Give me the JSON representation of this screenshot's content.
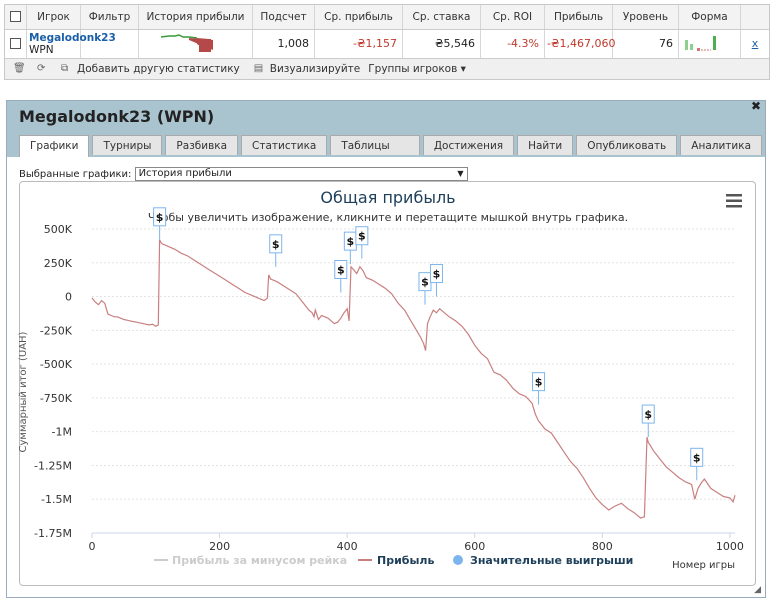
{
  "top_table": {
    "headers": [
      "Игрок",
      "Фильтр",
      "История прибыли",
      "Подсчет",
      "Ср. прибыль",
      "Ср. ставка",
      "Ср. ROI",
      "Прибыль",
      "Уровень",
      "Форма"
    ],
    "row": {
      "player_name": "Megalodonk23",
      "player_site": "WPN",
      "count": "1,008",
      "avg_profit": "-₴1,157",
      "avg_stake": "₴5,546",
      "avg_roi": "-4.3%",
      "profit": "-₴1,467,060",
      "level": "76",
      "remove": "x"
    },
    "toolbar": {
      "add_stat": "Добавить другую статистику",
      "visualize": "Визуализируйте",
      "player_groups": "Группы игроков"
    }
  },
  "panel": {
    "title": "Megalodonk23 (WPN)",
    "tabs": [
      "Графики",
      "Турниры",
      "Разбивка",
      "Статистика",
      "Таблицы лидеров",
      "Достижения",
      "Найти",
      "Опубликовать",
      "Аналитика"
    ],
    "active_tab": "Графики",
    "select_label": "Выбранные графики:",
    "select_value": "История прибыли"
  },
  "chart_data": {
    "type": "line",
    "title": "Общая прибыль",
    "subtitle": "Чтобы увеличить изображение, кликните и перетащите мышкой внутрь графика.",
    "ylabel": "Суммарный итог (UAH)",
    "xlabel": "Номер игры",
    "xlim": [
      0,
      1008
    ],
    "ylim": [
      -1750000,
      500000
    ],
    "xticks": [
      "0",
      "200",
      "400",
      "600",
      "800",
      "1000"
    ],
    "xtick_values": [
      0,
      200,
      400,
      600,
      800,
      1000
    ],
    "yticks": [
      "500K",
      "250K",
      "0",
      "-250K",
      "-500K",
      "-750K",
      "-1M",
      "-1.25M",
      "-1.5M",
      "-1.75M"
    ],
    "ytick_values": [
      500000,
      250000,
      0,
      -250000,
      -500000,
      -750000,
      -1000000,
      -1250000,
      -1500000,
      -1750000
    ],
    "legend": [
      "Прибыль за минусом рейка",
      "Прибыль",
      "Значительные выигрыши"
    ],
    "series": [
      {
        "name": "Прибыль",
        "color": "#c97f7f",
        "x": [
          0,
          5,
          10,
          15,
          20,
          25,
          30,
          35,
          40,
          45,
          50,
          55,
          60,
          65,
          70,
          75,
          80,
          85,
          90,
          95,
          100,
          104,
          106,
          108,
          110,
          115,
          120,
          130,
          140,
          150,
          160,
          170,
          180,
          190,
          200,
          210,
          220,
          230,
          240,
          250,
          260,
          270,
          275,
          277,
          280,
          290,
          300,
          310,
          320,
          330,
          340,
          345,
          348,
          350,
          355,
          360,
          365,
          370,
          375,
          380,
          385,
          390,
          395,
          400,
          403,
          406,
          410,
          415,
          420,
          425,
          430,
          440,
          450,
          460,
          470,
          480,
          490,
          500,
          510,
          515,
          520,
          523,
          526,
          530,
          535,
          540,
          545,
          550,
          560,
          570,
          580,
          590,
          600,
          610,
          620,
          630,
          640,
          650,
          660,
          670,
          680,
          690,
          695,
          700,
          705,
          710,
          720,
          730,
          740,
          750,
          760,
          770,
          780,
          790,
          800,
          810,
          820,
          830,
          840,
          850,
          860,
          866,
          870,
          872,
          875,
          880,
          890,
          900,
          910,
          920,
          930,
          940,
          945,
          950,
          955,
          960,
          970,
          980,
          990,
          1000,
          1005,
          1008
        ],
        "y": [
          -10000,
          -40000,
          -60000,
          -30000,
          -50000,
          -130000,
          -140000,
          -150000,
          -150000,
          -160000,
          -170000,
          -175000,
          -180000,
          -185000,
          -190000,
          -195000,
          -200000,
          -205000,
          -210000,
          -205000,
          -220000,
          -210000,
          420000,
          400000,
          390000,
          380000,
          370000,
          350000,
          320000,
          300000,
          270000,
          240000,
          210000,
          180000,
          150000,
          120000,
          90000,
          60000,
          30000,
          10000,
          -10000,
          -30000,
          -10000,
          160000,
          130000,
          110000,
          80000,
          50000,
          20000,
          -40000,
          -100000,
          -120000,
          -150000,
          -100000,
          -170000,
          -140000,
          -150000,
          -160000,
          -180000,
          -200000,
          -190000,
          -160000,
          -120000,
          -90000,
          -180000,
          220000,
          200000,
          170000,
          220000,
          190000,
          140000,
          120000,
          90000,
          60000,
          20000,
          -50000,
          -100000,
          -180000,
          -260000,
          -300000,
          -350000,
          -400000,
          -200000,
          -150000,
          -100000,
          -120000,
          -90000,
          -110000,
          -150000,
          -180000,
          -220000,
          -280000,
          -360000,
          -420000,
          -460000,
          -560000,
          -580000,
          -620000,
          -680000,
          -720000,
          -740000,
          -790000,
          -870000,
          -920000,
          -950000,
          -980000,
          -1010000,
          -1080000,
          -1150000,
          -1220000,
          -1270000,
          -1340000,
          -1420000,
          -1490000,
          -1540000,
          -1580000,
          -1550000,
          -1530000,
          -1570000,
          -1600000,
          -1640000,
          -1630000,
          -1040000,
          -1080000,
          -1100000,
          -1140000,
          -1200000,
          -1260000,
          -1300000,
          -1340000,
          -1370000,
          -1390000,
          -1500000,
          -1420000,
          -1380000,
          -1350000,
          -1420000,
          -1450000,
          -1480000,
          -1490000,
          -1520000,
          -1470000
        ]
      }
    ],
    "big_wins": [
      {
        "x": 106,
        "y": 420000
      },
      {
        "x": 288,
        "y": 220000
      },
      {
        "x": 390,
        "y": 30000
      },
      {
        "x": 405,
        "y": 240000
      },
      {
        "x": 423,
        "y": 280000
      },
      {
        "x": 522,
        "y": -60000
      },
      {
        "x": 540,
        "y": 0
      },
      {
        "x": 700,
        "y": -800000
      },
      {
        "x": 872,
        "y": -1040000
      },
      {
        "x": 948,
        "y": -1360000
      }
    ],
    "marker_label": "$"
  }
}
